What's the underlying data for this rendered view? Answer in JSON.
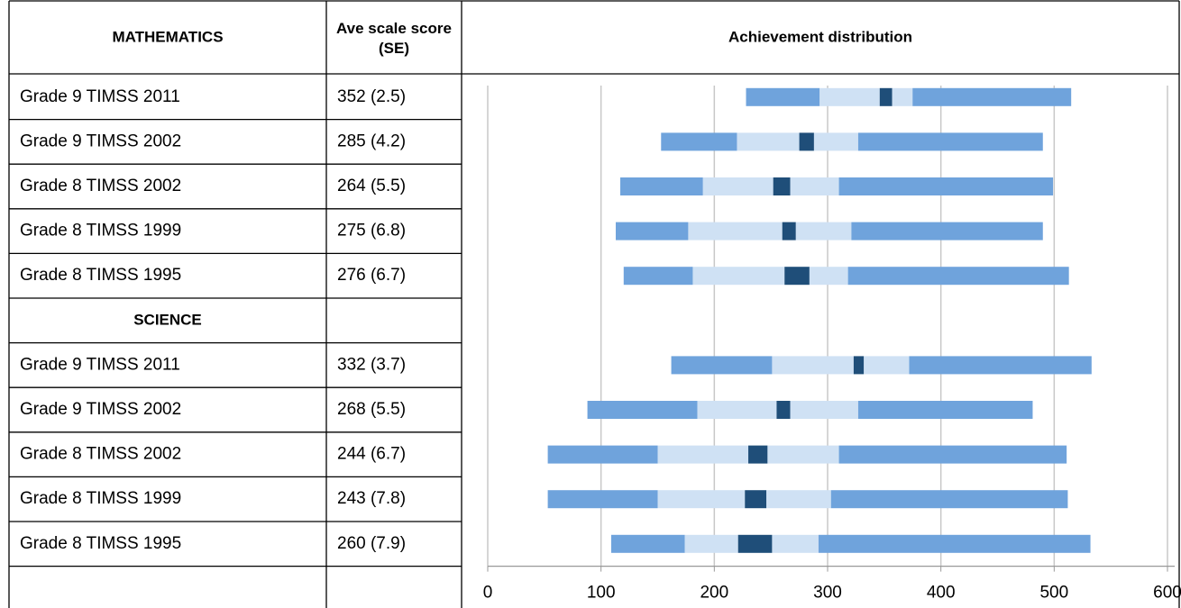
{
  "table": {
    "headers": [
      "MATHEMATICS",
      "Ave scale score (SE)"
    ],
    "rows": [
      {
        "label": "Grade 9 TIMSS 2011",
        "score": "352 (2.5)"
      },
      {
        "label": "Grade 9 TIMSS 2002",
        "score": "285 (4.2)"
      },
      {
        "label": "Grade 8 TIMSS 2002",
        "score": "264 (5.5)"
      },
      {
        "label": "Grade 8 TIMSS 1999",
        "score": "275 (6.8)"
      },
      {
        "label": "Grade 8 TIMSS 1995",
        "score": "276 (6.7)"
      },
      {
        "label": "SCIENCE",
        "section": true
      },
      {
        "label": "Grade 9 TIMSS 2011",
        "score": "332 (3.7)"
      },
      {
        "label": "Grade 9 TIMSS 2002",
        "score": "268 (5.5)"
      },
      {
        "label": "Grade 8 TIMSS 2002",
        "score": "244 (6.7)"
      },
      {
        "label": "Grade 8 TIMSS 1999",
        "score": "243 (7.8)"
      },
      {
        "label": "Grade 8 TIMSS 1995",
        "score": "260 (7.9)"
      }
    ]
  },
  "chart_data": {
    "type": "floating-bar",
    "title": "Achievement distribution",
    "segment_colors": [
      "#6fa3dc",
      "#cfe1f4",
      "#1f4e79",
      "#cfe1f4",
      "#6fa3dc"
    ],
    "ranges": [
      [
        228,
        293,
        346,
        357,
        375,
        515
      ],
      [
        153,
        220,
        275,
        288,
        327,
        490
      ],
      [
        117,
        190,
        252,
        267,
        310,
        499
      ],
      [
        113,
        177,
        260,
        272,
        321,
        490
      ],
      [
        120,
        181,
        262,
        284,
        318,
        513
      ],
      null,
      [
        162,
        251,
        323,
        332,
        372,
        533
      ],
      [
        88,
        185,
        255,
        267,
        327,
        481
      ],
      [
        53,
        150,
        230,
        247,
        310,
        511
      ],
      [
        53,
        150,
        227,
        246,
        303,
        512
      ],
      [
        109,
        174,
        221,
        251,
        292,
        532
      ]
    ],
    "xlim": [
      0,
      600
    ],
    "xticks": [
      0,
      100,
      200,
      300,
      400,
      500,
      600
    ],
    "grid": true
  }
}
